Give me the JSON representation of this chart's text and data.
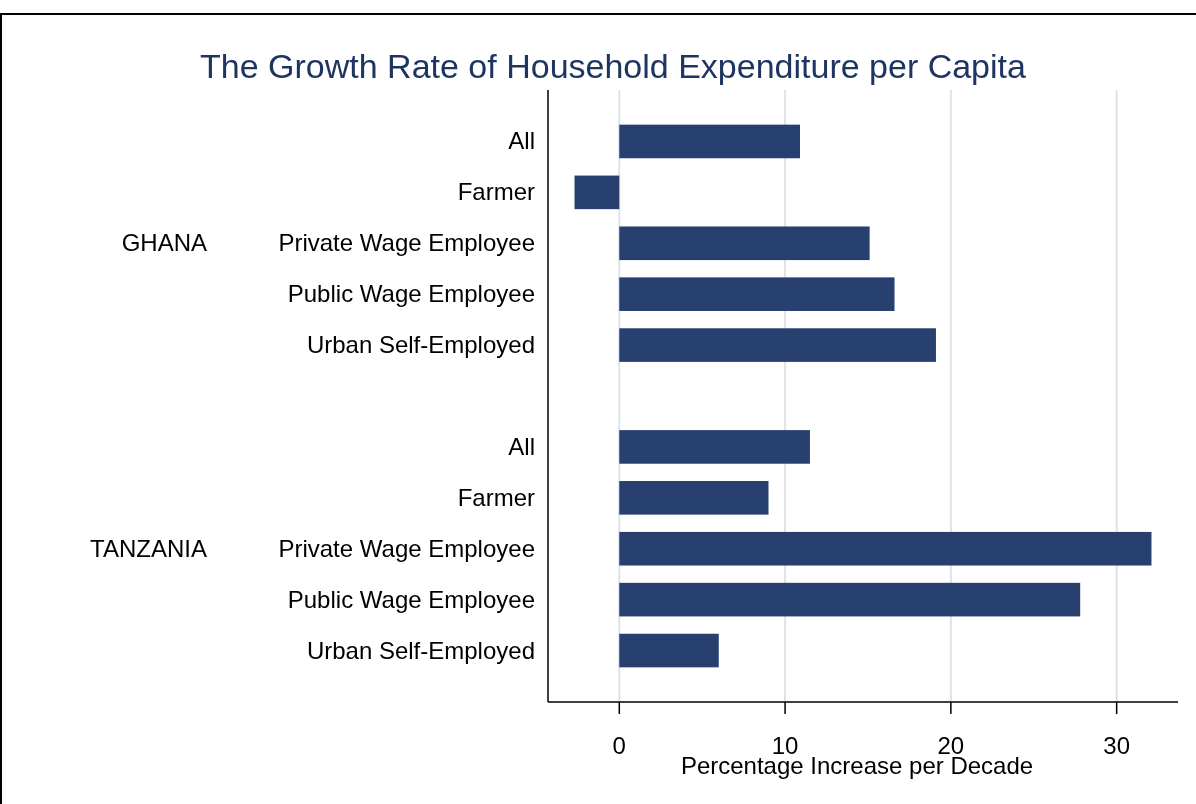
{
  "chart_data": {
    "type": "bar",
    "orientation": "horizontal",
    "title": "The Growth Rate of Household Expenditure per Capita",
    "xlabel": "Percentage Increase per Decade",
    "categories": [
      "All",
      "Farmer",
      "Private Wage Employee",
      "Public Wage Employee",
      "Urban Self-Employed",
      null,
      "All",
      "Farmer",
      "Private Wage Employee",
      "Public Wage Employee",
      "Urban Self-Employed"
    ],
    "values": [
      10.9,
      -2.7,
      15.1,
      16.6,
      19.1,
      null,
      11.5,
      9.0,
      32.1,
      27.8,
      6.0
    ],
    "color": "#27406f",
    "xlim": [
      -4.3,
      33.7
    ],
    "xticks": [
      0,
      10,
      20,
      30
    ],
    "grid": "x",
    "annotations": [
      "GHANA",
      "TANZANIA"
    ]
  }
}
